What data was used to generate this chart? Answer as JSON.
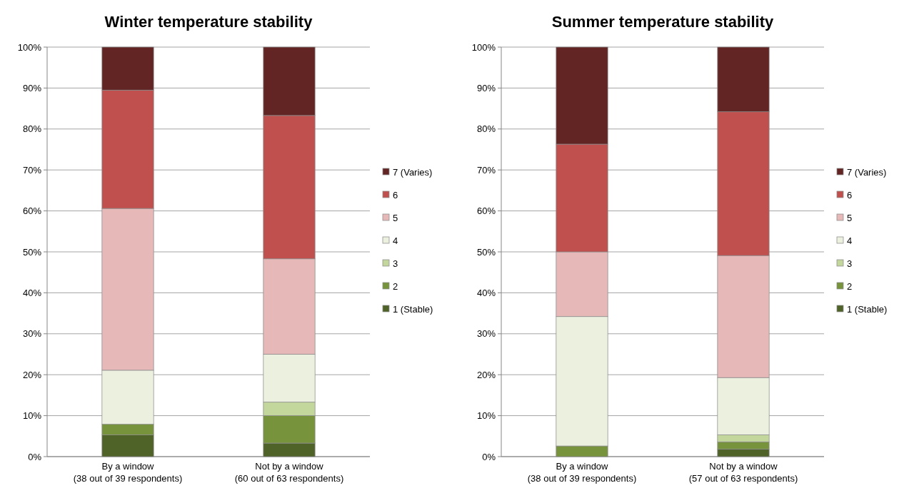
{
  "chart_data": [
    {
      "type": "bar",
      "title": "Winter temperature stability",
      "stacked": true,
      "categories": [
        "By a window\n(38 out of 39 respondents)",
        "Not by a window\n(60 out of 63 respondents)"
      ],
      "ylim": [
        0,
        100
      ],
      "yticks": [
        {
          "value": 0,
          "label": "0%"
        },
        {
          "value": 10,
          "label": "10%"
        },
        {
          "value": 20,
          "label": "20%"
        },
        {
          "value": 30,
          "label": "30%"
        },
        {
          "value": 40,
          "label": "40%"
        },
        {
          "value": 50,
          "label": "50%"
        },
        {
          "value": 60,
          "label": "60%"
        },
        {
          "value": 70,
          "label": "70%"
        },
        {
          "value": 80,
          "label": "80%"
        },
        {
          "value": 90,
          "label": "90%"
        },
        {
          "value": 100,
          "label": "100%"
        }
      ],
      "grid": "y",
      "legend": "right",
      "series": [
        {
          "name": "1 (Stable)",
          "color": "#4f6228",
          "values": [
            5.3,
            3.3
          ]
        },
        {
          "name": "2",
          "color": "#77933c",
          "values": [
            2.6,
            6.7
          ]
        },
        {
          "name": "3",
          "color": "#c3d69b",
          "values": [
            0,
            3.3
          ]
        },
        {
          "name": "4",
          "color": "#ebf1de",
          "values": [
            13.2,
            11.7
          ]
        },
        {
          "name": "5",
          "color": "#e6b9b8",
          "values": [
            39.5,
            23.3
          ]
        },
        {
          "name": "6",
          "color": "#c0504d",
          "values": [
            28.9,
            35
          ]
        },
        {
          "name": "7 (Varies)",
          "color": "#632523",
          "values": [
            10.5,
            16.7
          ]
        }
      ]
    },
    {
      "type": "bar",
      "title": "Summer temperature stability",
      "stacked": true,
      "categories": [
        "By a window\n(38 out of 39 respondents)",
        "Not by a window\n(57 out of 63 respondents)"
      ],
      "ylim": [
        0,
        100
      ],
      "yticks": [
        {
          "value": 0,
          "label": "0%"
        },
        {
          "value": 10,
          "label": "10%"
        },
        {
          "value": 20,
          "label": "20%"
        },
        {
          "value": 30,
          "label": "30%"
        },
        {
          "value": 40,
          "label": "40%"
        },
        {
          "value": 50,
          "label": "50%"
        },
        {
          "value": 60,
          "label": "60%"
        },
        {
          "value": 70,
          "label": "70%"
        },
        {
          "value": 80,
          "label": "80%"
        },
        {
          "value": 90,
          "label": "90%"
        },
        {
          "value": 100,
          "label": "100%"
        }
      ],
      "grid": "y",
      "legend": "right",
      "series": [
        {
          "name": "1 (Stable)",
          "color": "#4f6228",
          "values": [
            0,
            1.8
          ]
        },
        {
          "name": "2",
          "color": "#77933c",
          "values": [
            2.6,
            1.8
          ]
        },
        {
          "name": "3",
          "color": "#c3d69b",
          "values": [
            0,
            1.7
          ]
        },
        {
          "name": "4",
          "color": "#ebf1de",
          "values": [
            31.6,
            14
          ]
        },
        {
          "name": "5",
          "color": "#e6b9b8",
          "values": [
            15.8,
            29.8
          ]
        },
        {
          "name": "6",
          "color": "#c0504d",
          "values": [
            26.3,
            35.1
          ]
        },
        {
          "name": "7 (Varies)",
          "color": "#632523",
          "values": [
            23.7,
            15.8
          ]
        }
      ]
    }
  ]
}
